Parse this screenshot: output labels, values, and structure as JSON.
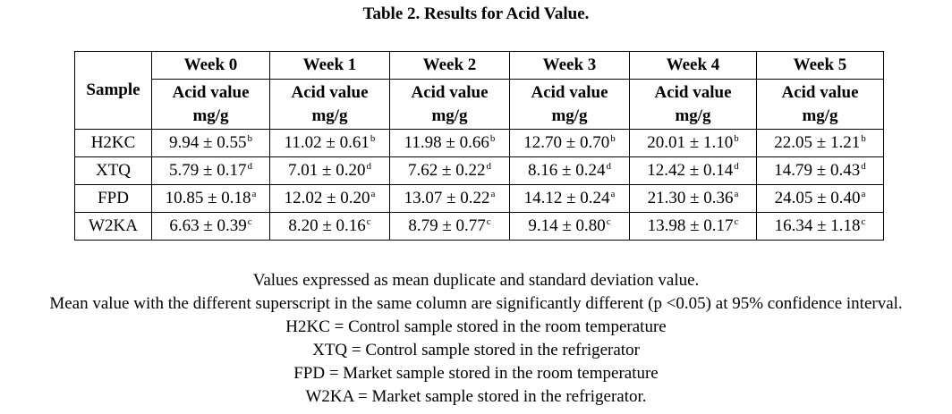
{
  "title": "Table 2. Results for Acid Value.",
  "table": {
    "sample_header": "Sample",
    "weeks": [
      "Week 0",
      "Week 1",
      "Week 2",
      "Week 3",
      "Week 4",
      "Week 5"
    ],
    "unit_line1": "Acid value",
    "unit_line2": "mg/g",
    "rows": [
      {
        "sample": "H2KC",
        "cells": [
          {
            "value": "9.94 ± 0.55",
            "sup": "b"
          },
          {
            "value": "11.02 ± 0.61",
            "sup": "b"
          },
          {
            "value": "11.98 ± 0.66",
            "sup": "b"
          },
          {
            "value": "12.70 ± 0.70",
            "sup": "b"
          },
          {
            "value": "20.01 ± 1.10",
            "sup": "b"
          },
          {
            "value": "22.05 ± 1.21",
            "sup": "b"
          }
        ]
      },
      {
        "sample": "XTQ",
        "cells": [
          {
            "value": "5.79 ± 0.17",
            "sup": "d"
          },
          {
            "value": "7.01 ± 0.20",
            "sup": "d"
          },
          {
            "value": "7.62 ± 0.22",
            "sup": "d"
          },
          {
            "value": "8.16 ± 0.24",
            "sup": "d"
          },
          {
            "value": "12.42 ± 0.14",
            "sup": "d"
          },
          {
            "value": "14.79 ± 0.43",
            "sup": "d"
          }
        ]
      },
      {
        "sample": "FPD",
        "cells": [
          {
            "value": "10.85 ± 0.18",
            "sup": "a"
          },
          {
            "value": "12.02 ± 0.20",
            "sup": "a"
          },
          {
            "value": "13.07 ± 0.22",
            "sup": "a"
          },
          {
            "value": "14.12 ± 0.24",
            "sup": "a"
          },
          {
            "value": "21.30 ± 0.36",
            "sup": "a"
          },
          {
            "value": "24.05 ± 0.40",
            "sup": "a"
          }
        ]
      },
      {
        "sample": "W2KA",
        "cells": [
          {
            "value": "6.63 ± 0.39",
            "sup": "c"
          },
          {
            "value": "8.20 ± 0.16",
            "sup": "c"
          },
          {
            "value": "8.79 ± 0.77",
            "sup": "c"
          },
          {
            "value": "9.14 ± 0.80",
            "sup": "c"
          },
          {
            "value": "13.98 ± 0.17",
            "sup": "c"
          },
          {
            "value": "16.34 ± 1.18",
            "sup": "c"
          }
        ]
      }
    ]
  },
  "notes": [
    "Values expressed as mean duplicate and standard deviation value.",
    "Mean value with the different superscript in the same column are significantly different (p <0.05) at 95% confidence interval.",
    "H2KC = Control sample stored in the room temperature",
    "XTQ = Control sample stored in the refrigerator",
    "FPD = Market sample stored in the room temperature",
    "W2KA = Market sample stored in the refrigerator."
  ]
}
